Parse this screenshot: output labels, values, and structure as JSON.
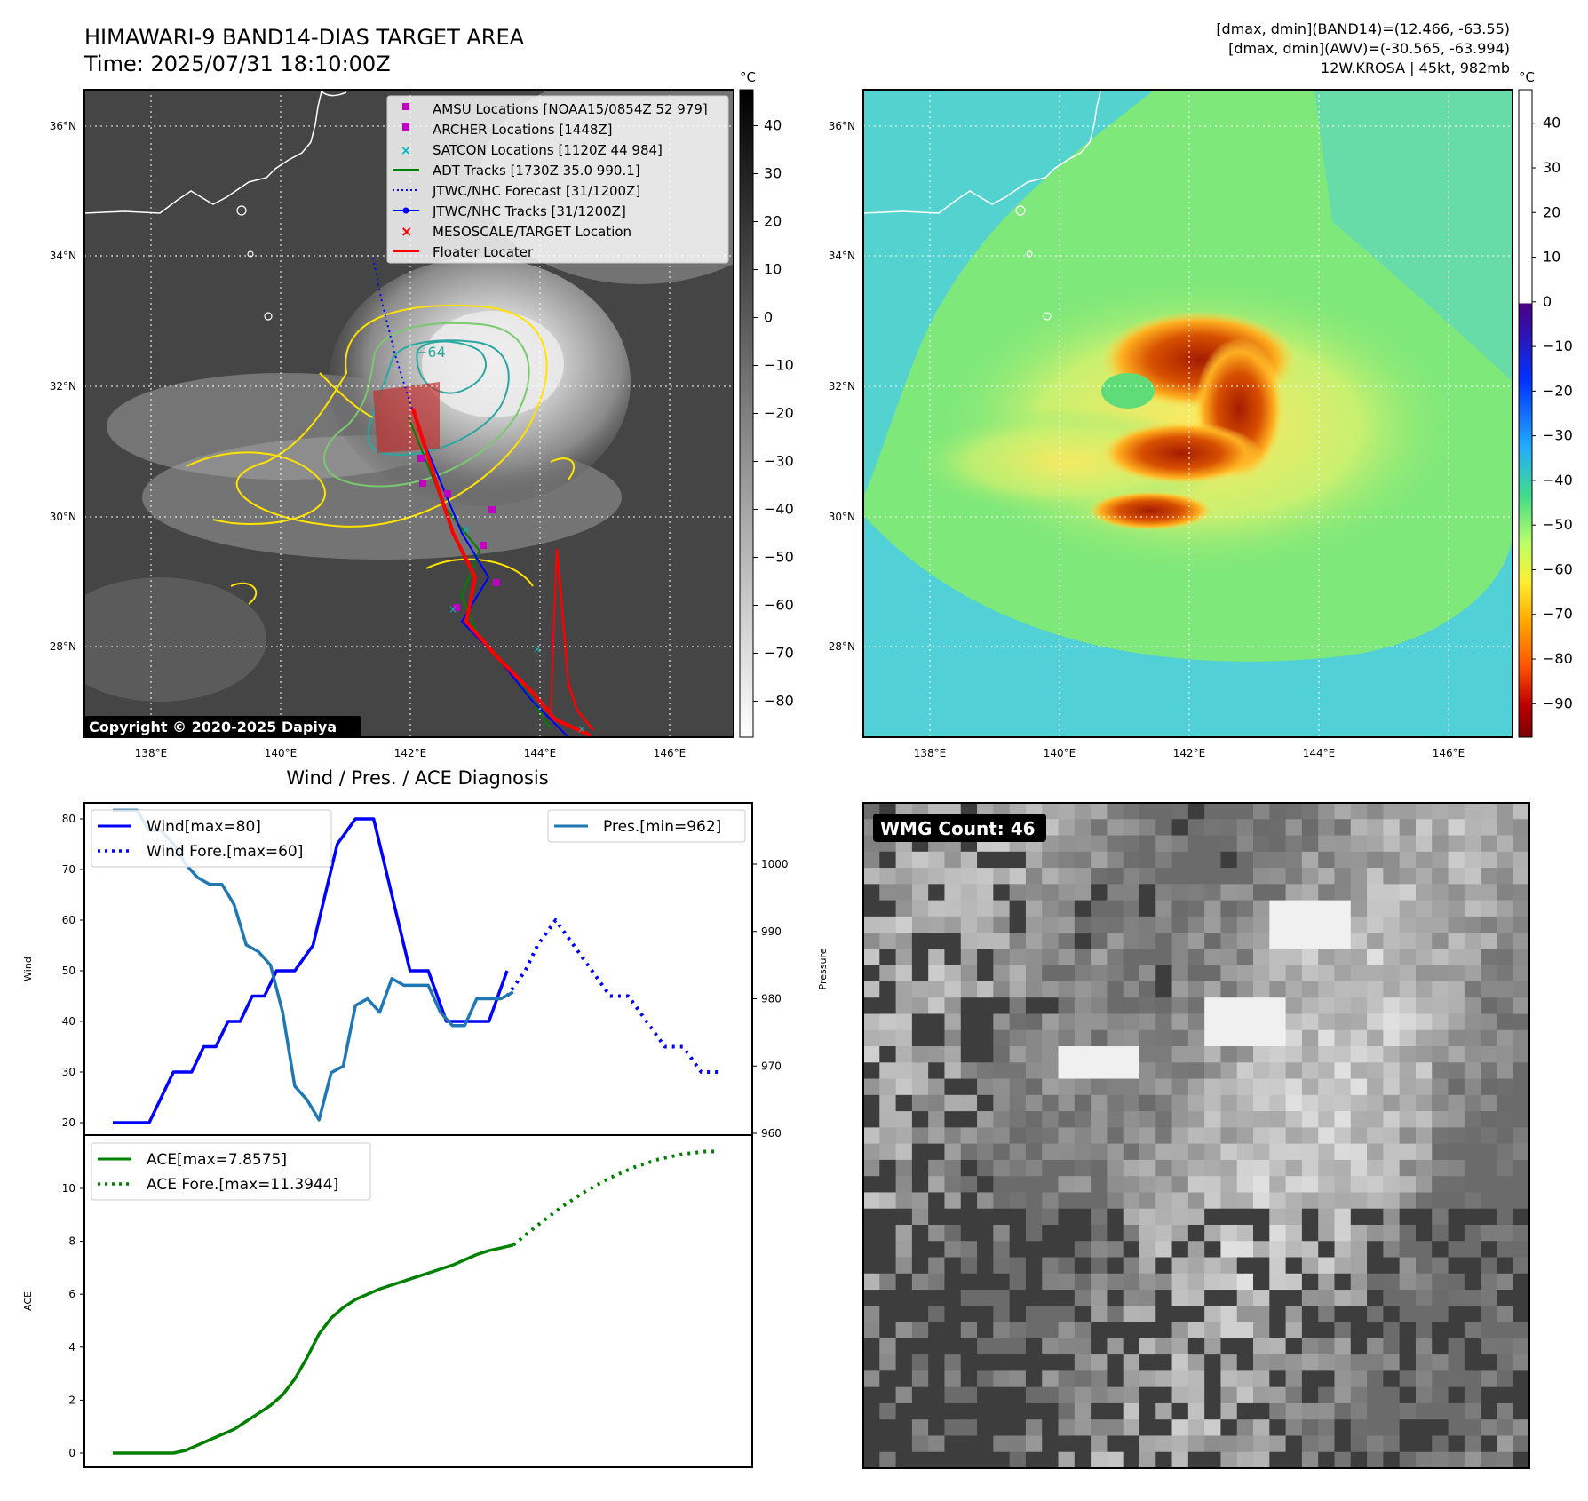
{
  "header": {
    "title": "HIMAWARI-9 BAND14-DIAS TARGET AREA",
    "time": "Time: 2025/07/31 18:10:00Z",
    "info1": "[dmax, dmin](BAND14)=(12.466, -63.55)",
    "info2": "[dmax, dmin](AWV)=(-30.565, -63.994)",
    "storm": "12W.KROSA | 45kt, 982mb"
  },
  "copyright": "Copyright © 2020-2025 Dapiya",
  "map": {
    "lat_labels": [
      "36°N",
      "34°N",
      "32°N",
      "30°N",
      "28°N"
    ],
    "lon_labels": [
      "138°E",
      "140°E",
      "142°E",
      "144°E",
      "146°E"
    ],
    "contour_label": "−64",
    "colors": {
      "land": "#ffffff",
      "grid": "#ffffff",
      "ir_background": "#4a4a4a"
    }
  },
  "colorbar_ir": {
    "unit": "°C",
    "ticks": [
      "40",
      "30",
      "20",
      "10",
      "0",
      "−10",
      "−20",
      "−30",
      "−40",
      "−50",
      "−60",
      "−70",
      "−80"
    ]
  },
  "colorbar_awv": {
    "unit": "°C",
    "ticks": [
      "40",
      "30",
      "20",
      "10",
      "0",
      "−10",
      "−20",
      "−30",
      "−40",
      "−50",
      "−60",
      "−70",
      "−80",
      "−90"
    ]
  },
  "legend": [
    {
      "label": "AMSU Locations [NOAA15/0854Z 52 979]",
      "symbol": "square",
      "color": "#c000c0"
    },
    {
      "label": "ARCHER Locations [1448Z]",
      "symbol": "square",
      "color": "#c000c0"
    },
    {
      "label": "SATCON Locations [1120Z 44 984]",
      "symbol": "x",
      "color": "#00b8b8"
    },
    {
      "label": "ADT Tracks [1730Z 35.0 990.1]",
      "symbol": "line",
      "color": "#008000"
    },
    {
      "label": "JTWC/NHC Forecast [31/1200Z]",
      "symbol": "dotted",
      "color": "#0000ff"
    },
    {
      "label": "JTWC/NHC Tracks [31/1200Z]",
      "symbol": "line-dot",
      "color": "#0000ff"
    },
    {
      "label": "MESOSCALE/TARGET Location",
      "symbol": "x",
      "color": "#ff0000"
    },
    {
      "label": "Floater Locater",
      "symbol": "line",
      "color": "#ff0000"
    }
  ],
  "diagnosis": {
    "title": "Wind / Pres. / ACE Diagnosis",
    "wind_ylabel": "Wind",
    "pres_ylabel": "Pressure",
    "ace_ylabel": "ACE",
    "wind_legend": "Wind[max=80]",
    "wind_fore_legend": "Wind Fore.[max=60]",
    "pres_legend": "Pres.[min=962]",
    "ace_legend": "ACE[max=7.8575]",
    "ace_fore_legend": "ACE Fore.[max=11.3944]"
  },
  "wmg": {
    "label": "WMG Count: 46"
  },
  "chart_data": [
    {
      "type": "line",
      "panel": "wind-pressure",
      "x": [
        0,
        1,
        2,
        3,
        4,
        5,
        6,
        7,
        8,
        9,
        10,
        11,
        12,
        13,
        14,
        15,
        16,
        17,
        18,
        19,
        20,
        21,
        22,
        23,
        24,
        25,
        26,
        27,
        28,
        29,
        30,
        31,
        32,
        33,
        34,
        35,
        36,
        37,
        38,
        39,
        40,
        41,
        42,
        43,
        44,
        45,
        46,
        47,
        48,
        49,
        50,
        51,
        52,
        53,
        54,
        55,
        56,
        57,
        58,
        59,
        60,
        61,
        62,
        63,
        64,
        65,
        66,
        67,
        68,
        69,
        70,
        71,
        72,
        73,
        74,
        75,
        76,
        77,
        78,
        79,
        80,
        81,
        82,
        83,
        84,
        85,
        86,
        87,
        88,
        89,
        90,
        91,
        92,
        93,
        94,
        95,
        96,
        97,
        98,
        99,
        100
      ],
      "series": [
        {
          "name": "Wind[max=80]",
          "axis": "left",
          "color": "#0000ff",
          "style": "solid",
          "x": [
            0,
            6,
            10,
            13,
            15,
            17,
            19,
            21,
            23,
            25,
            27,
            30,
            33,
            35,
            37,
            40,
            43,
            46,
            49,
            52,
            55,
            58,
            60,
            62,
            65
          ],
          "values": [
            20,
            20,
            30,
            30,
            35,
            35,
            40,
            40,
            45,
            45,
            50,
            50,
            55,
            65,
            75,
            80,
            80,
            65,
            50,
            50,
            40,
            40,
            40,
            40,
            50
          ]
        },
        {
          "name": "Wind Fore.[max=60]",
          "axis": "left",
          "color": "#0000ff",
          "style": "dotted",
          "x": [
            65,
            68,
            70,
            73,
            76,
            79,
            82,
            85,
            88,
            91,
            94,
            97,
            100
          ],
          "values": [
            45,
            50,
            55,
            60,
            55,
            50,
            45,
            45,
            40,
            35,
            35,
            30,
            30
          ]
        },
        {
          "name": "Pres.[min=962]",
          "axis": "right",
          "color": "#1f77b4",
          "style": "solid",
          "x": [
            0,
            4,
            6,
            8,
            10,
            12,
            14,
            16,
            18,
            20,
            22,
            24,
            26,
            28,
            30,
            32,
            34,
            36,
            38,
            40,
            42,
            44,
            46,
            48,
            50,
            52,
            54,
            56,
            58,
            60,
            62,
            64,
            66
          ],
          "values": [
            1008,
            1008,
            1005,
            1005,
            1003,
            1000,
            998,
            997,
            997,
            994,
            988,
            987,
            985,
            978,
            967,
            965,
            962,
            969,
            970,
            979,
            980,
            978,
            983,
            982,
            982,
            982,
            978,
            976,
            976,
            980,
            980,
            980,
            981
          ]
        }
      ],
      "ylim_left": [
        20,
        80
      ],
      "ylim_right": [
        960,
        1008
      ],
      "yticks_left": [
        "20",
        "30",
        "40",
        "50",
        "60",
        "70",
        "80"
      ],
      "yticks_right": [
        "960",
        "970",
        "980",
        "990",
        "1000"
      ]
    },
    {
      "type": "line",
      "panel": "ace",
      "series": [
        {
          "name": "ACE[max=7.8575]",
          "color": "#008000",
          "style": "solid",
          "x": [
            0,
            4,
            8,
            10,
            12,
            14,
            16,
            18,
            20,
            22,
            24,
            26,
            28,
            30,
            32,
            34,
            36,
            38,
            40,
            42,
            44,
            46,
            48,
            50,
            52,
            54,
            56,
            58,
            60,
            62,
            64,
            66
          ],
          "values": [
            0,
            0,
            0,
            0,
            0.1,
            0.3,
            0.5,
            0.7,
            0.9,
            1.2,
            1.5,
            1.8,
            2.2,
            2.8,
            3.6,
            4.5,
            5.1,
            5.5,
            5.8,
            6.0,
            6.2,
            6.35,
            6.5,
            6.65,
            6.8,
            6.95,
            7.1,
            7.3,
            7.5,
            7.65,
            7.75,
            7.86
          ]
        },
        {
          "name": "ACE Fore.[max=11.3944]",
          "color": "#008000",
          "style": "dotted",
          "x": [
            66,
            70,
            74,
            78,
            82,
            86,
            90,
            94,
            98,
            100
          ],
          "values": [
            7.86,
            8.6,
            9.3,
            9.9,
            10.4,
            10.8,
            11.1,
            11.3,
            11.4,
            11.39
          ]
        }
      ],
      "ylim": [
        0,
        11.4
      ],
      "yticks": [
        "0",
        "2",
        "4",
        "6",
        "8",
        "10"
      ]
    }
  ]
}
